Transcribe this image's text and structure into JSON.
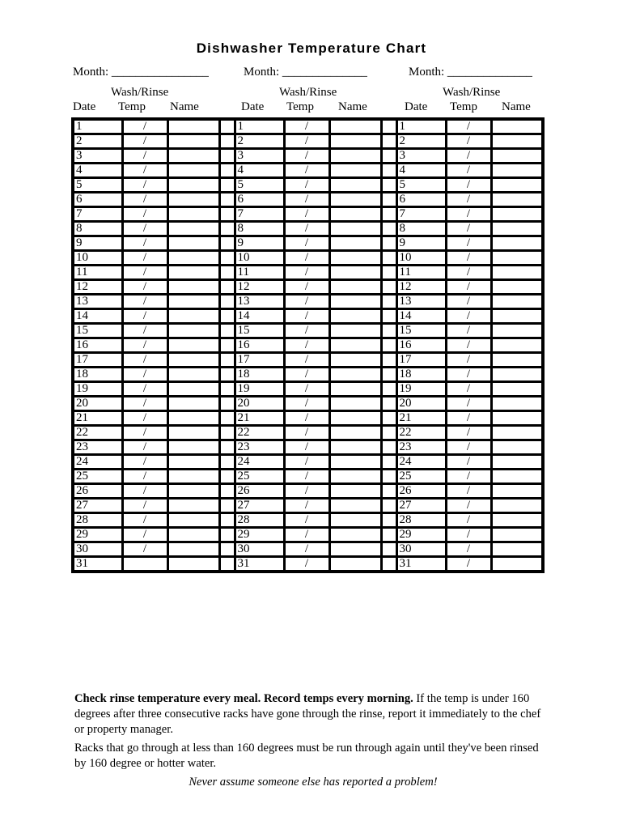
{
  "title": "Dishwasher Temperature Chart",
  "month_label": "Month: ________________",
  "month_label_2": "Month: ______________",
  "month_label_3": "Month: ______________",
  "headers": {
    "wash_rinse": "Wash/Rinse",
    "date": "Date",
    "temp": "Temp",
    "name": "Name"
  },
  "months": [
    {
      "temps": [
        "/",
        "/",
        "/",
        "/",
        "/",
        "/",
        "/",
        "/",
        "/",
        "/",
        "/",
        "/",
        "/",
        "/",
        "/",
        "/",
        "/",
        "/",
        "/",
        "/",
        "/",
        "/",
        "/",
        "/",
        "/",
        "/",
        "/",
        "/",
        "/",
        "/",
        ""
      ]
    },
    {
      "temps": [
        "/",
        "/",
        "/",
        "/",
        "/",
        "/",
        "/",
        "/",
        "/",
        "/",
        "/",
        "/",
        "/",
        "/",
        "/",
        "/",
        "/",
        "/",
        "/",
        "/",
        "/",
        "/",
        "/",
        "/",
        "/",
        "/",
        "/",
        "/",
        "/",
        "/",
        "/"
      ]
    },
    {
      "temps": [
        "/",
        "/",
        "/",
        "/",
        "/",
        "/",
        "/",
        "/",
        "/",
        "/",
        "/",
        "/",
        "/",
        "/",
        "/",
        "/",
        "/",
        "/",
        "/",
        "/",
        "/",
        "/",
        "/",
        "/",
        "/",
        "/",
        "/",
        "/",
        "/",
        "/",
        "/"
      ]
    }
  ],
  "dates": [
    "1",
    "2",
    "3",
    "4",
    "5",
    "6",
    "7",
    "8",
    "9",
    "10",
    "11",
    "12",
    "13",
    "14",
    "15",
    "16",
    "17",
    "18",
    "19",
    "20",
    "21",
    "22",
    "23",
    "24",
    "25",
    "26",
    "27",
    "28",
    "29",
    "30",
    "31"
  ],
  "notes": {
    "bold": "Check rinse temperature every meal. Record temps every morning.",
    "p1_rest": " If the temp is under 160 degrees after three consecutive racks have gone through the rinse, report it immediately to the chef or property manager.",
    "p2": "Racks that go through at less than 160 degrees must be run through again until they've been rinsed by 160 degree or hotter water.",
    "italic": "Never assume someone else has reported a problem!"
  }
}
